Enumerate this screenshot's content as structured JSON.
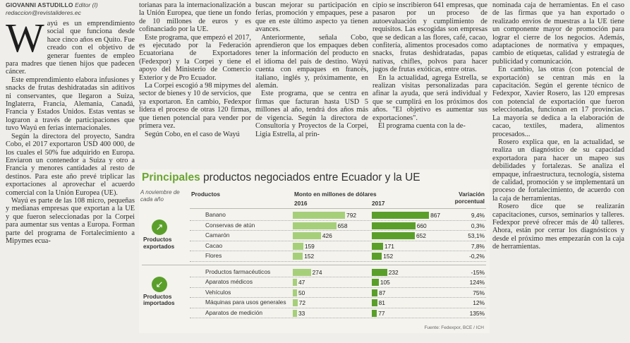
{
  "byline": {
    "author": "GIOVANNI ASTUDILLO",
    "role": "Editor (I)",
    "email": "redaccion@revistalideres.ec"
  },
  "article": {
    "col1": {
      "dropcap": "W",
      "p1": "ayú es un emprendimiento social que funciona desde hace cinco años en Quito. Fue creado con el objetivo de generar fuentes de empleo para madres que tienen hijos que padecen cáncer.",
      "p2": "Este emprendimiento elabora infusiones y snacks de frutas deshidratadas sin aditivos ni conservantes, que llegaron a Suiza, Inglaterra, Francia, Alemania, Canadá, Francia y Estados Unidos. Estas ventas se lograron a través de participaciones que tuvo Wayú en ferias internacionales.",
      "p3": "Según la directora del proyecto, Sandra Cobo, el 2017 exportaron USD 400 000, de los cuales el 50% fue adquirido en Europa. Enviaron un contenedor a Suiza y otro a Francia y menores cantidades al resto de destinos. Para este año prevé triplicar las exportaciones al aprovechar el acuerdo comercial con la Unión Europea (UE).",
      "p4": "Wayú es parte de las 108 micro, pequeñas y medianas empresas que exportan a la UE y que fueron seleccionadas por la Corpei para aumentar sus ventas a Europa. Forman parte del programa de Fortalecimiento a Mipymes ecua-"
    },
    "col2": {
      "p1": "torianas para la internacionalización a la Unión Europea, que tiene un fondo de 10 millones de euros y es cofinanciado por la UE.",
      "p2": "Este programa, que empezó el 2017, es ejecutado por la Federación Ecuatoriana de Exportadores (Fedexpor) y la Corpei y tiene el apoyo del Ministerio de Comercio Exterior y de Pro Ecuador.",
      "p3": "La Corpei escogió a 98 mipymes del sector de bienes y 10 de servicios, que ya exportaron. En cambio, Fedexpor lidera el proceso de otras 120 firmas, que tienen potencial para vender por primera vez.",
      "p4": "Según Cobo, en el caso de Wayú"
    },
    "col3": {
      "p1": "buscan mejorar su participación en ferias, promoción y empaques, pese a que en este último aspecto ya tienen avances.",
      "p2": "Anteriormente, señala Cobo, aprendieron que los empaques deben tener la información del producto en el idioma del país de destino. Wayú cuenta con empaques en francés, italiano, inglés y, próximamente, en alemán.",
      "p3": "Este programa, que se centra en firmas que facturan hasta USD 5 millones al año, tendrá dos años más de vigencia. Según la directora de Consultoría y Proyectos de la Corpei, Ligia Estrella, al prin-"
    },
    "col4": {
      "p1": "cipio se inscribieron 641 empresas, que pasaron por un proceso de autoevaluación y cumplimiento de requisitos. Las escogidas son empresas que se dedican a las flores, café, cacao, confitería, alimentos procesados como snacks, frutas deshidratadas, papas nativas, chifles, polvos para hacer jugos de frutas exóticas, entre otras.",
      "p2": "En la actualidad, agrega Estrella, se realizan visitas personalizadas para afinar la ayuda, que será individual y que se cumplirá en los próximos dos años. \"El objetivo es aumentar sus exportaciones\".",
      "p3": "El programa cuenta con la de-"
    },
    "col5": {
      "p1": "nominada caja de herramientas. En el caso de las firmas que ya han exportado o realizado envíos de muestras a la UE tiene un componente mayor de promoción para lograr el cierre de los negocios. Además, adaptaciones de normativa y empaques, cambio de etiquetas, calidad y estrategia de publicidad y comunicación.",
      "p2": "En cambio, las otras (con potencial de exportación) se centran más en la capacitación. Según el gerente técnico de Fedexpor, Xavier Rosero, las 120 empresas con potencial de exportación que fueron seleccionadas, funcionan en 17 provincias. La mayoría se dedica a la elaboración de cacao, textiles, madera, alimentos procesados...",
      "p3": "Rosero explica que, en la actualidad, se realiza un diagnóstico de su capacidad exportadora para hacer un mapeo sus debilidades y fortalezas. Se analiza el empaque, infraestructura, tecnología, sistema de calidad, promoción y se implementará un proceso de fortalecimiento, de acuerdo con la caja de herramientas.",
      "p4": "Rosero dice que se realizarán capacitaciones, cursos, seminarios y talleres. Fedexpor prevé ofrecer más de 40 talleres. Ahora, están por cerrar los diagnósticos y desde el próximo mes empezarán con la caja de herramientas."
    }
  },
  "chart_data": {
    "type": "bar",
    "title_highlight": "Principales",
    "title_rest": "productos negociados entre Ecuador y la UE",
    "note": "A noviembre de cada año",
    "col_products": "Productos",
    "col_amount": "Monto en millones de dólares",
    "col_variation": "Variación porcentual",
    "x_labels": [
      "2016",
      "2017"
    ],
    "source": "Fuente: Fedexpor, BCE / ICH",
    "groups": [
      {
        "name": "Productos exportados",
        "icon": "export-icon",
        "items": [
          {
            "product": "Banano",
            "v2016": 792,
            "v2017": 867,
            "variation": "9,4%"
          },
          {
            "product": "Conservas de atún",
            "v2016": 658,
            "v2017": 660,
            "variation": "0,3%"
          },
          {
            "product": "Camarón",
            "v2016": 426,
            "v2017": 652,
            "variation": "53,1%"
          },
          {
            "product": "Cacao",
            "v2016": 159,
            "v2017": 171,
            "variation": "7,8%"
          },
          {
            "product": "Flores",
            "v2016": 152,
            "v2017": 152,
            "variation": "-0,2%"
          }
        ]
      },
      {
        "name": "Productos importados",
        "icon": "import-icon",
        "items": [
          {
            "product": "Productos farmacéuticos",
            "v2016": 274,
            "v2017": 232,
            "variation": "-15%"
          },
          {
            "product": "Aparatos médicos",
            "v2016": 47,
            "v2017": 105,
            "variation": "124%"
          },
          {
            "product": "Vehículos",
            "v2016": 50,
            "v2017": 87,
            "variation": "75%"
          },
          {
            "product": "Máquinas para usos generales",
            "v2016": 72,
            "v2017": 81,
            "variation": "12%"
          },
          {
            "product": "Aparatos de medición",
            "v2016": 33,
            "v2017": 77,
            "variation": "135%"
          }
        ]
      }
    ],
    "colors": {
      "v2016": "#a6cf7a",
      "v2017": "#5a9f2a",
      "accent": "#6aa531"
    }
  }
}
